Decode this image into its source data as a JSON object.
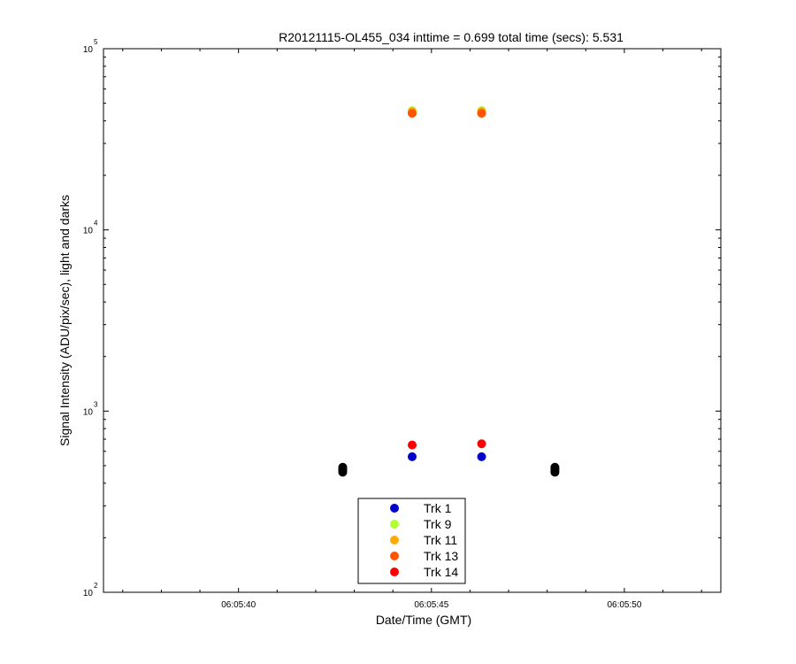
{
  "chart_data": {
    "type": "scatter",
    "title": "R20121115-OL455_034 inttime = 0.699 total time (secs): 5.531",
    "xlabel": "Date/Time (GMT)",
    "ylabel": "Signal Intensity (ADU/pix/sec), light and darks",
    "yscale": "log",
    "xlim": [
      "06:05:36.5",
      "06:05:52.5"
    ],
    "ylim": [
      100,
      100000
    ],
    "x_ticks": [
      "06:05:40",
      "06:05:45",
      "06:05:50"
    ],
    "y_ticks": [
      {
        "base": "10",
        "exp": "2",
        "value": 100
      },
      {
        "base": "10",
        "exp": "3",
        "value": 1000
      },
      {
        "base": "10",
        "exp": "4",
        "value": 10000
      },
      {
        "base": "10",
        "exp": "5",
        "value": 100000
      }
    ],
    "grid": false,
    "legend_position": "bottom-center",
    "series": [
      {
        "name": "Trk 1",
        "color": "#0000cc",
        "points": [
          [
            "06:05:44.5",
            560
          ],
          [
            "06:05:46.3",
            560
          ]
        ]
      },
      {
        "name": "Trk 9",
        "color": "#b3ff33",
        "points": [
          [
            "06:05:44.5",
            45500
          ],
          [
            "06:05:46.3",
            45500
          ]
        ]
      },
      {
        "name": "Trk 11",
        "color": "#ffaa00",
        "points": [
          [
            "06:05:44.5",
            45000
          ],
          [
            "06:05:46.3",
            45000
          ]
        ]
      },
      {
        "name": "Trk 13",
        "color": "#ff5500",
        "points": [
          [
            "06:05:44.5",
            44000
          ],
          [
            "06:05:46.3",
            44000
          ]
        ]
      },
      {
        "name": "Trk 14",
        "color": "#ff0000",
        "points": [
          [
            "06:05:44.5",
            650
          ],
          [
            "06:05:46.3",
            660
          ]
        ]
      }
    ],
    "darks": {
      "color": "#000000",
      "points": [
        [
          "06:05:42.7",
          460
        ],
        [
          "06:05:42.7",
          470
        ],
        [
          "06:05:42.7",
          480
        ],
        [
          "06:05:42.7",
          490
        ],
        [
          "06:05:48.2",
          460
        ],
        [
          "06:05:48.2",
          470
        ],
        [
          "06:05:48.2",
          480
        ],
        [
          "06:05:48.2",
          490
        ]
      ]
    }
  }
}
